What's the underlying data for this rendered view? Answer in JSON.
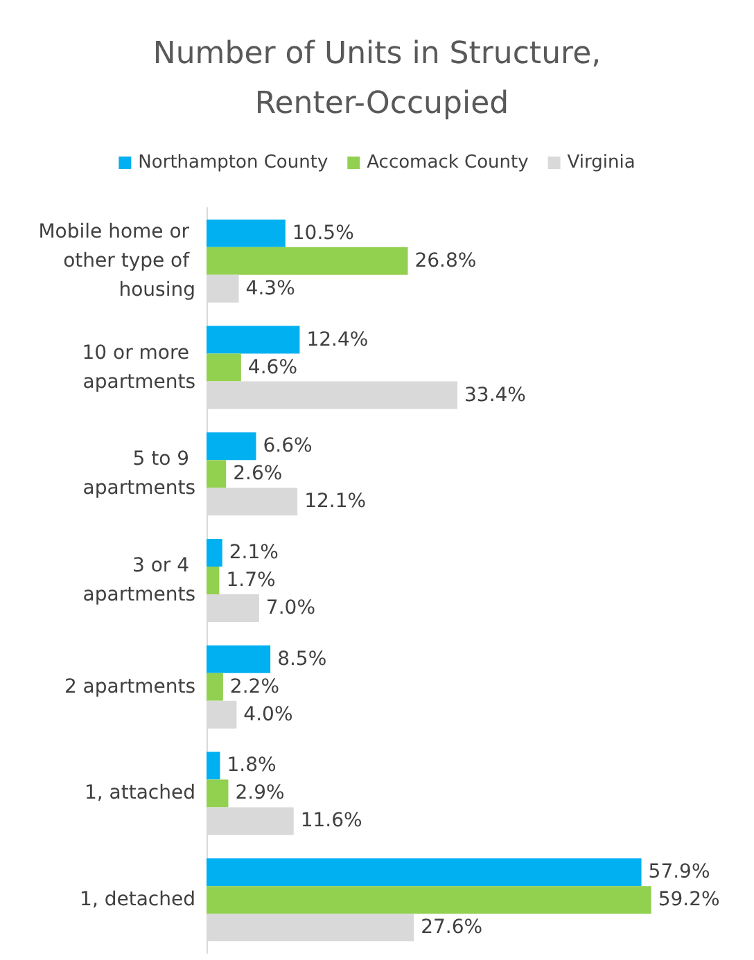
{
  "chart_data": {
    "type": "bar",
    "orientation": "horizontal",
    "title": "Number of Units in Structure, Renter-Occupied",
    "legend": "top",
    "categories": [
      "Mobile home or other type of housing",
      "10 or more apartments",
      "5 to 9 apartments",
      "3 or 4 apartments",
      "2 apartments",
      "1, attached",
      "1, detached"
    ],
    "series": [
      {
        "name": "Northampton County",
        "color": "#00b0f0",
        "values": [
          10.5,
          12.4,
          6.6,
          2.1,
          8.5,
          1.8,
          57.9
        ],
        "value_labels": [
          "10.5%",
          "12.4%",
          "6.6%",
          "2.1%",
          "8.5%",
          "1.8%",
          "57.9%"
        ]
      },
      {
        "name": "Accomack County",
        "color": "#92d050",
        "values": [
          26.8,
          4.6,
          2.6,
          1.7,
          2.2,
          2.9,
          59.2
        ],
        "value_labels": [
          "26.8%",
          "4.6%",
          "2.6%",
          "1.7%",
          "2.2%",
          "2.9%",
          "59.2%"
        ]
      },
      {
        "name": "Virginia",
        "color": "#d9d9d9",
        "values": [
          4.3,
          33.4,
          12.1,
          7.0,
          4.0,
          11.6,
          27.6
        ],
        "value_labels": [
          "4.3%",
          "33.4%",
          "12.1%",
          "7.0%",
          "4.0%",
          "11.6%",
          "27.6%"
        ]
      }
    ]
  }
}
